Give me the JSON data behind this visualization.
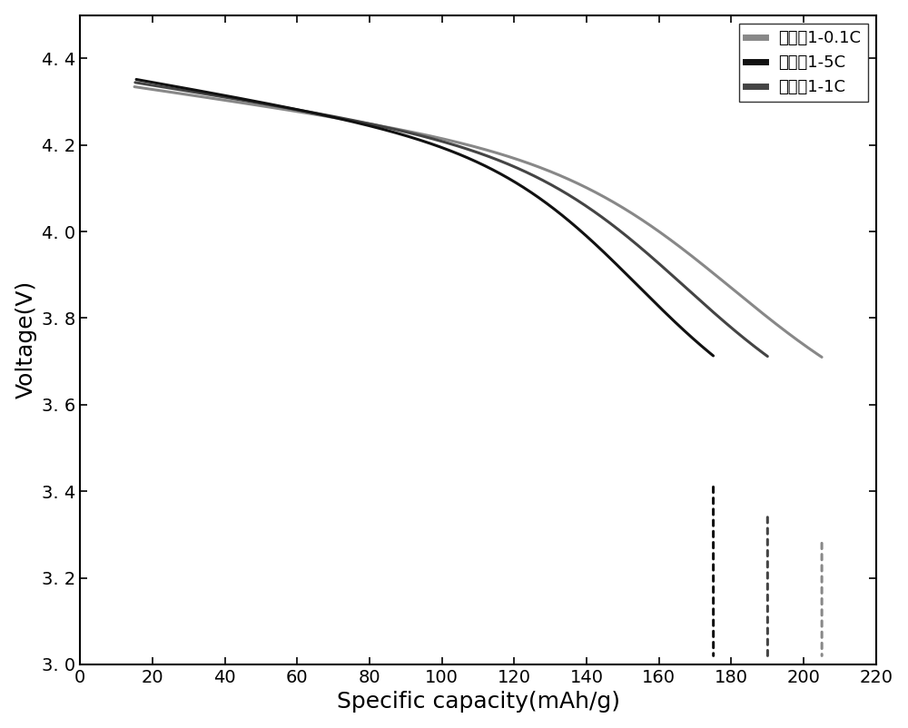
{
  "xlabel": "Specific capacity(mAh/g)",
  "ylabel": "Voltage(V)",
  "xlim": [
    0,
    220
  ],
  "ylim": [
    3.0,
    4.5
  ],
  "xticks": [
    0,
    20,
    40,
    60,
    80,
    100,
    120,
    140,
    160,
    180,
    200,
    220
  ],
  "yticks": [
    3.0,
    3.2,
    3.4,
    3.6,
    3.8,
    4.0,
    4.2,
    4.4
  ],
  "ytick_labels": [
    "3. 0",
    "3. 2",
    "3. 4",
    "3. 6",
    "3. 8",
    "4. 0",
    "4. 2",
    "4. 4"
  ],
  "series": [
    {
      "label": "实施例1-0.1C",
      "color": "#888888",
      "lw": 2.2,
      "x_start": 15.0,
      "x_end_solid": 205.0,
      "x_end_dot": 205.0,
      "v_start": 4.335,
      "v_dot_start": 3.28,
      "v_dot_end": 3.02
    },
    {
      "label": "实施例1-5C",
      "color": "#111111",
      "lw": 2.2,
      "x_start": 15.5,
      "x_end_solid": 175.0,
      "x_end_dot": 175.0,
      "v_start": 4.352,
      "v_dot_start": 3.41,
      "v_dot_end": 3.02
    },
    {
      "label": "实施例1-1C",
      "color": "#444444",
      "lw": 2.2,
      "x_start": 15.2,
      "x_end_solid": 190.0,
      "x_end_dot": 190.0,
      "v_start": 4.345,
      "v_dot_start": 3.34,
      "v_dot_end": 3.02
    }
  ],
  "legend_fontsize": 13,
  "axis_label_fontsize": 18,
  "tick_fontsize": 14,
  "background_color": "#ffffff"
}
